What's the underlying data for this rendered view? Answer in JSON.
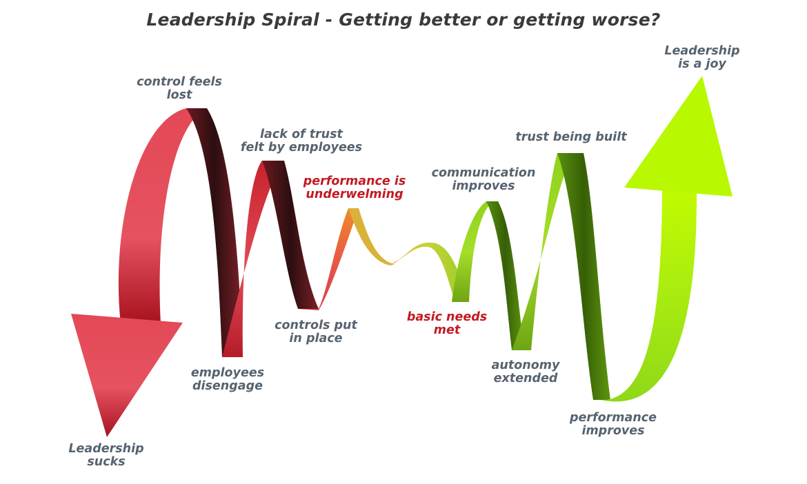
{
  "title": "Leadership Spiral - Getting better or getting worse?",
  "labels": {
    "control_feels_lost": [
      "control feels",
      "lost"
    ],
    "lack_of_trust": [
      "lack of trust",
      "felt by employees"
    ],
    "performance_underwhelming": [
      "performance is",
      "underwelming"
    ],
    "controls_put_in_place": [
      "controls put",
      "in place"
    ],
    "employees_disengage": [
      "employees",
      "disengage"
    ],
    "leadership_sucks": [
      "Leadership",
      "sucks"
    ],
    "basic_needs_met": [
      "basic needs",
      "met"
    ],
    "communication_improves": [
      "communication",
      "improves"
    ],
    "trust_being_built": "trust being built",
    "autonomy_extended": [
      "autonomy",
      "extended"
    ],
    "performance_improves": [
      "performance",
      "improves"
    ],
    "leadership_is_a_joy": [
      "Leadership",
      "is a joy"
    ]
  },
  "colors": {
    "text_slate": "#56636f",
    "text_red": "#c31a22",
    "title": "#3a3a3a",
    "ribbon_red": "#d8343d",
    "ribbon_red_dark": "#3a1215",
    "ribbon_orange": "#f08a2a",
    "ribbon_green": "#a4dc1e",
    "ribbon_green_dark": "#3e6a08",
    "arrow_green": "#b6f500"
  }
}
